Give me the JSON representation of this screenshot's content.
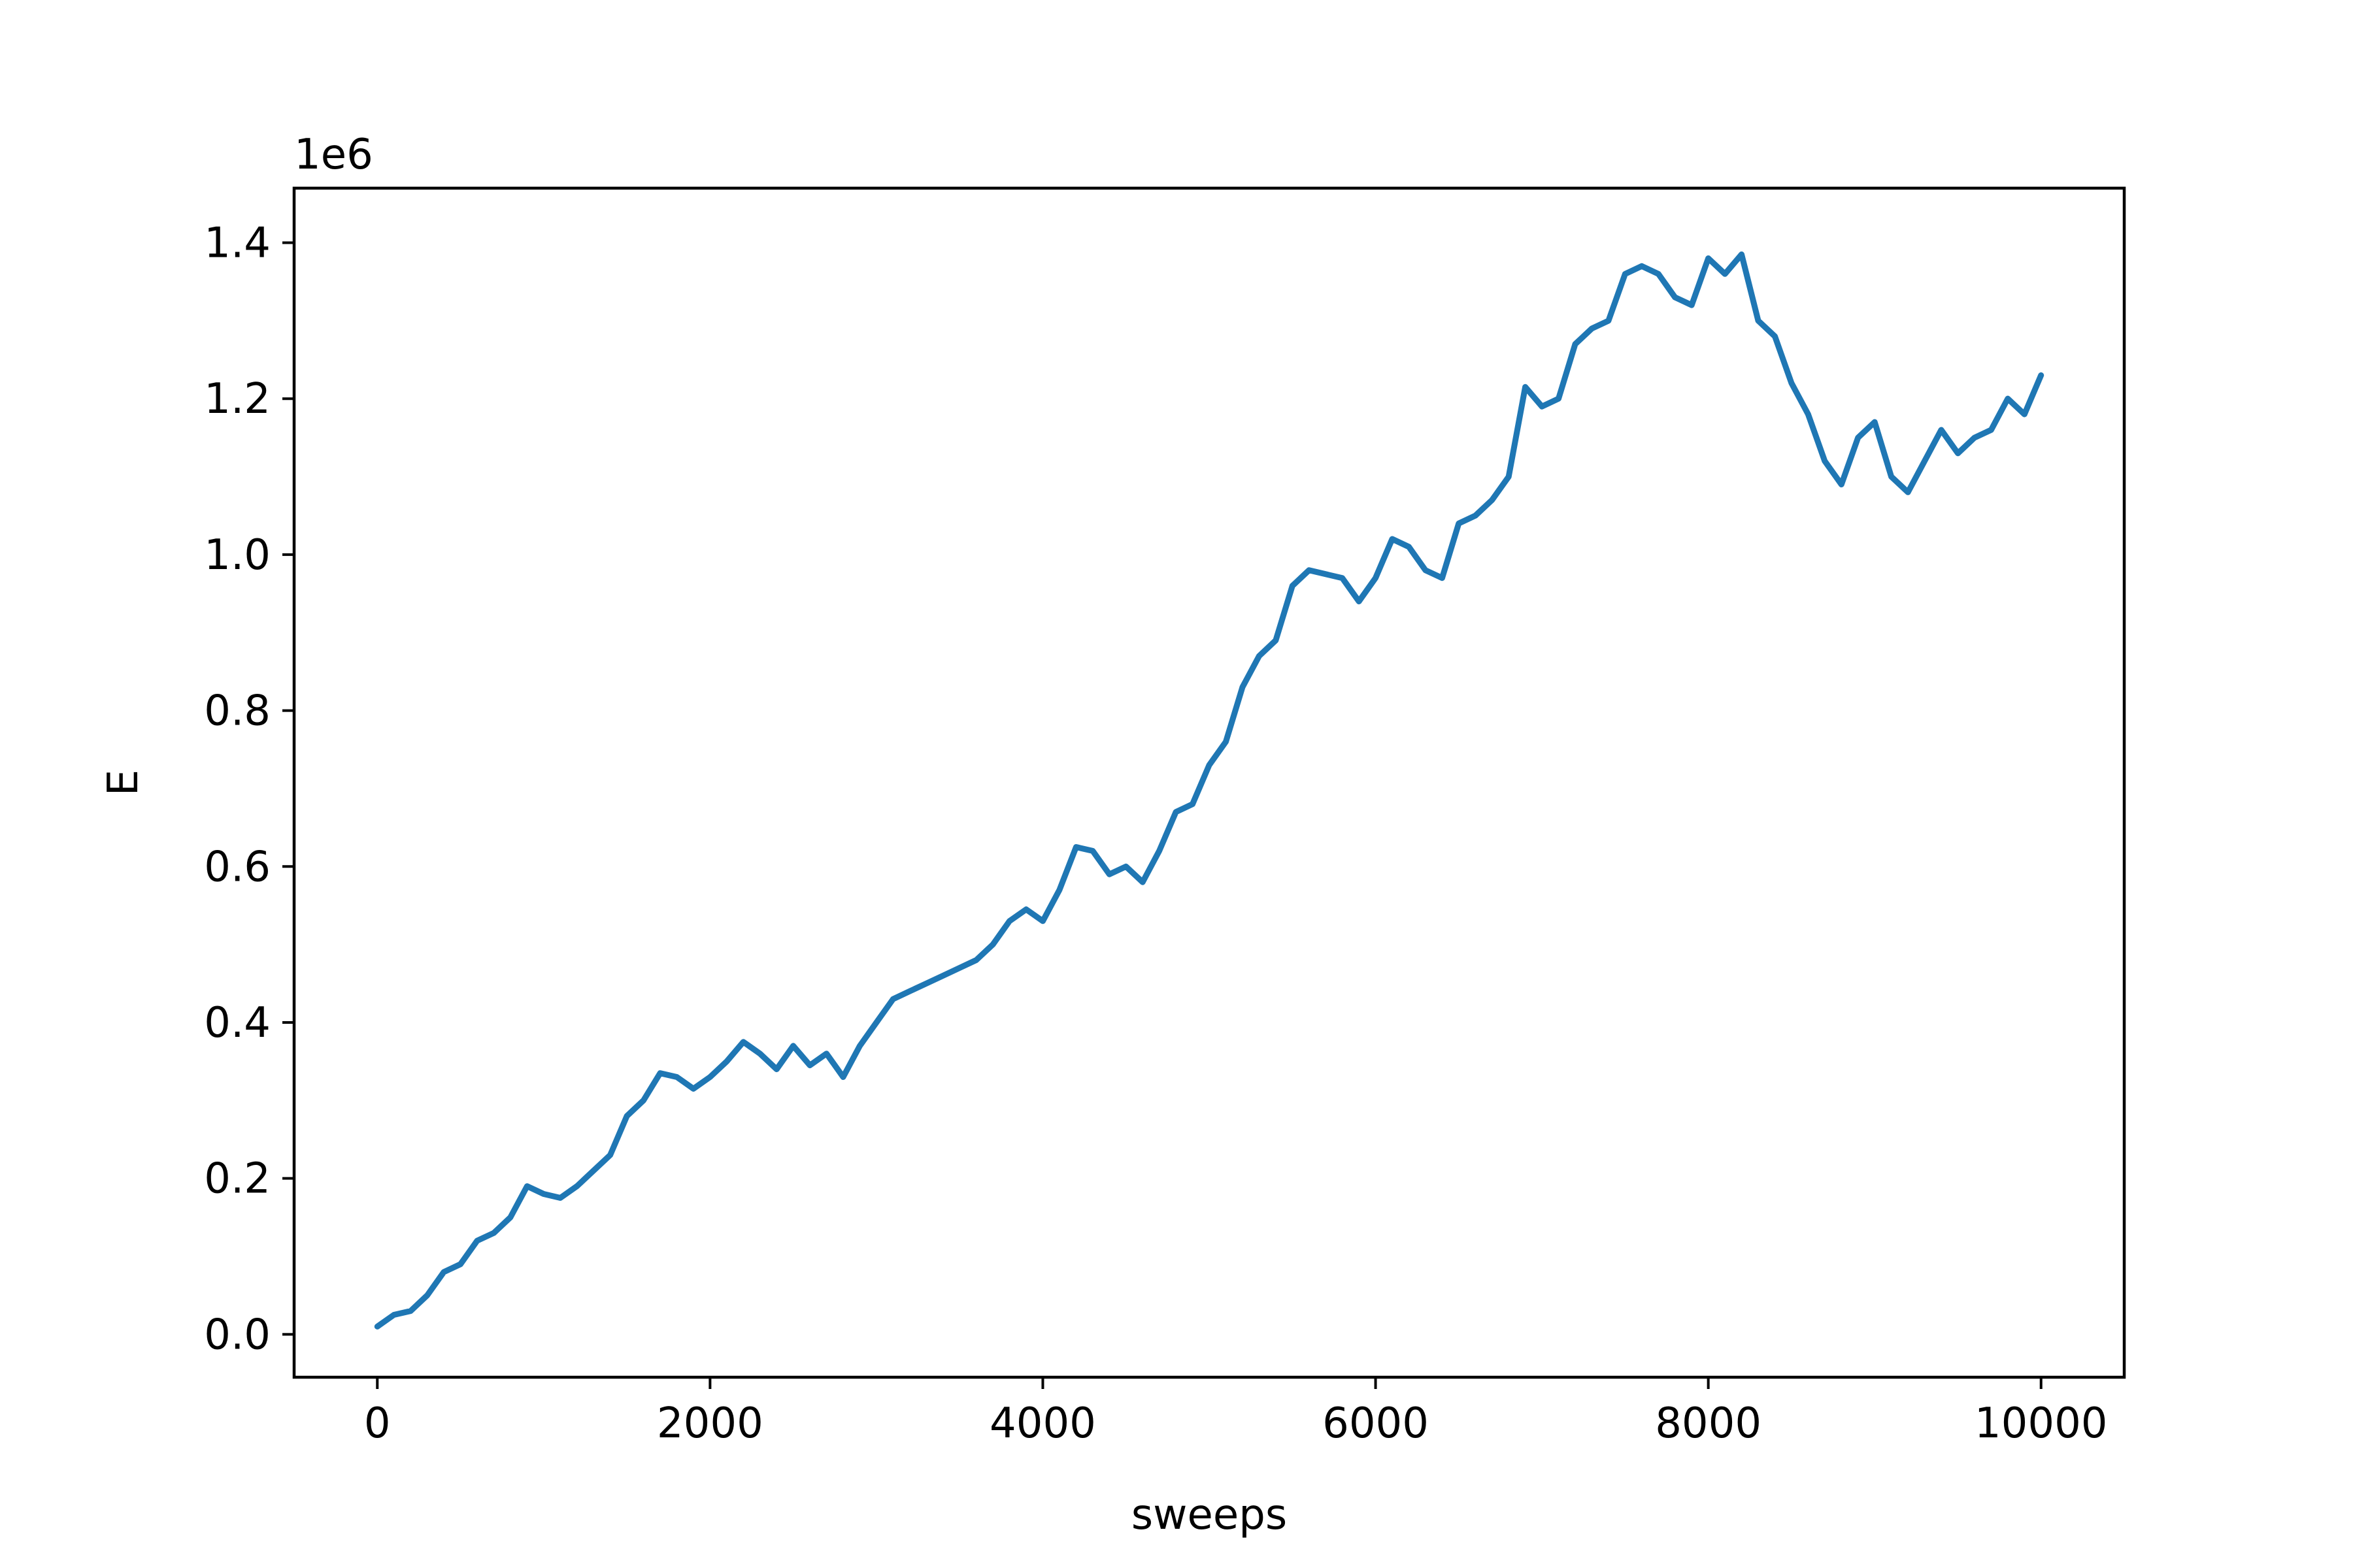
{
  "chart_data": {
    "type": "line",
    "title": "",
    "xlabel": "sweeps",
    "ylabel": "E",
    "y_offset_label": "1e6",
    "xlim": [
      -500,
      10500
    ],
    "ylim": [
      -0.055,
      1.47
    ],
    "x_ticks": [
      0,
      2000,
      4000,
      6000,
      8000,
      10000
    ],
    "x_tick_labels": [
      "0",
      "2000",
      "4000",
      "6000",
      "8000",
      "10000"
    ],
    "y_ticks": [
      0.0,
      0.2,
      0.4,
      0.6,
      0.8,
      1.0,
      1.2,
      1.4
    ],
    "y_tick_labels": [
      "0.0",
      "0.2",
      "0.4",
      "0.6",
      "0.8",
      "1.0",
      "1.2",
      "1.4"
    ],
    "grid": false,
    "line_color": "#1f77b4",
    "series": [
      {
        "x": [
          0,
          100,
          200,
          300,
          400,
          500,
          600,
          700,
          800,
          900,
          1000,
          1100,
          1200,
          1300,
          1400,
          1500,
          1600,
          1700,
          1800,
          1900,
          2000,
          2100,
          2200,
          2300,
          2400,
          2500,
          2600,
          2700,
          2800,
          2900,
          3000,
          3100,
          3200,
          3300,
          3400,
          3500,
          3600,
          3700,
          3800,
          3900,
          4000,
          4100,
          4200,
          4300,
          4400,
          4500,
          4600,
          4700,
          4800,
          4900,
          5000,
          5100,
          5200,
          5300,
          5400,
          5500,
          5600,
          5700,
          5800,
          5900,
          6000,
          6100,
          6200,
          6300,
          6400,
          6500,
          6600,
          6700,
          6800,
          6900,
          7000,
          7100,
          7200,
          7300,
          7400,
          7500,
          7600,
          7700,
          7800,
          7900,
          8000,
          8100,
          8200,
          8300,
          8400,
          8500,
          8600,
          8700,
          8800,
          8900,
          9000,
          9100,
          9200,
          9300,
          9400,
          9500,
          9600,
          9700,
          9800,
          9900,
          10000
        ],
        "values": [
          0.01,
          0.025,
          0.03,
          0.05,
          0.08,
          0.09,
          0.12,
          0.13,
          0.15,
          0.19,
          0.18,
          0.175,
          0.19,
          0.21,
          0.23,
          0.28,
          0.3,
          0.335,
          0.33,
          0.315,
          0.33,
          0.35,
          0.375,
          0.36,
          0.34,
          0.37,
          0.345,
          0.36,
          0.33,
          0.37,
          0.4,
          0.43,
          0.44,
          0.45,
          0.46,
          0.47,
          0.48,
          0.5,
          0.53,
          0.545,
          0.53,
          0.57,
          0.625,
          0.62,
          0.59,
          0.6,
          0.58,
          0.62,
          0.67,
          0.68,
          0.73,
          0.76,
          0.83,
          0.87,
          0.89,
          0.96,
          0.98,
          0.975,
          0.97,
          0.94,
          0.97,
          1.02,
          1.01,
          0.98,
          0.97,
          1.04,
          1.05,
          1.07,
          1.1,
          1.215,
          1.19,
          1.2,
          1.27,
          1.29,
          1.3,
          1.36,
          1.37,
          1.36,
          1.33,
          1.32,
          1.38,
          1.36,
          1.385,
          1.3,
          1.28,
          1.22,
          1.18,
          1.12,
          1.09,
          1.15,
          1.17,
          1.1,
          1.08,
          1.12,
          1.16,
          1.13,
          1.15,
          1.16,
          1.2,
          1.18,
          1.23
        ]
      }
    ]
  }
}
